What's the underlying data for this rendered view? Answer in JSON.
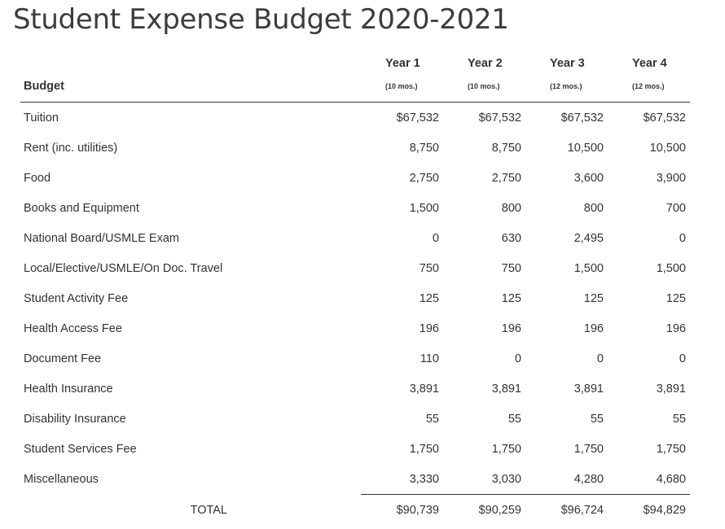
{
  "page": {
    "title": "Student Expense Budget 2020-2021"
  },
  "table": {
    "label_header": "Budget",
    "years": [
      {
        "name": "Year 1",
        "months": "(10 mos.)"
      },
      {
        "name": "Year 2",
        "months": "(10 mos.)"
      },
      {
        "name": "Year 3",
        "months": "(12 mos.)"
      },
      {
        "name": "Year 4",
        "months": "(12 mos.)"
      }
    ],
    "rows": [
      {
        "label": "Tuition",
        "values": [
          "$67,532",
          "$67,532",
          "$67,532",
          "$67,532"
        ]
      },
      {
        "label": "Rent (inc. utilities)",
        "values": [
          "8,750",
          "8,750",
          "10,500",
          "10,500"
        ]
      },
      {
        "label": "Food",
        "values": [
          "2,750",
          "2,750",
          "3,600",
          "3,900"
        ]
      },
      {
        "label": "Books and Equipment",
        "values": [
          "1,500",
          "800",
          "800",
          "700"
        ]
      },
      {
        "label": "National Board/USMLE Exam",
        "values": [
          "0",
          "630",
          "2,495",
          "0"
        ]
      },
      {
        "label": "Local/Elective/USMLE/On Doc. Travel",
        "values": [
          "750",
          "750",
          "1,500",
          "1,500"
        ]
      },
      {
        "label": "Student Activity Fee",
        "values": [
          "125",
          "125",
          "125",
          "125"
        ]
      },
      {
        "label": "Health Access Fee",
        "values": [
          "196",
          "196",
          "196",
          "196"
        ]
      },
      {
        "label": "Document Fee",
        "values": [
          "110",
          "0",
          "0",
          "0"
        ]
      },
      {
        "label": "Health Insurance",
        "values": [
          "3,891",
          "3,891",
          "3,891",
          "3,891"
        ]
      },
      {
        "label": "Disability Insurance",
        "values": [
          "55",
          "55",
          "55",
          "55"
        ]
      },
      {
        "label": "Student Services Fee",
        "values": [
          "1,750",
          "1,750",
          "1,750",
          "1,750"
        ]
      },
      {
        "label": "Miscellaneous",
        "values": [
          "3,330",
          "3,030",
          "4,280",
          "4,680"
        ]
      }
    ],
    "total": {
      "label": "TOTAL",
      "values": [
        "$90,739",
        "$90,259",
        "$96,724",
        "$94,829"
      ]
    }
  }
}
